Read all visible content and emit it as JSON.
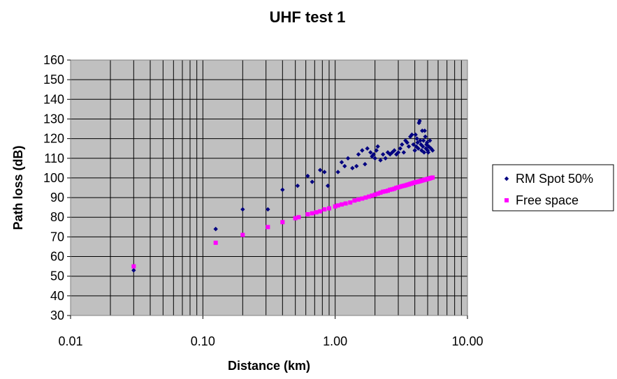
{
  "chart_data": {
    "type": "scatter",
    "title": "UHF test 1",
    "xlabel": "Distance (km)",
    "ylabel": "Path loss (dB)",
    "xscale": "log",
    "xlim": [
      0.01,
      10
    ],
    "ylim": [
      30,
      160
    ],
    "x_ticks": [
      0.01,
      0.1,
      1,
      10
    ],
    "x_tick_labels": [
      "0.01",
      "0.10",
      "1.00",
      "10.00"
    ],
    "y_ticks": [
      30,
      40,
      50,
      60,
      70,
      80,
      90,
      100,
      110,
      120,
      130,
      140,
      150,
      160
    ],
    "y_tick_labels": [
      "30",
      "40",
      "50",
      "60",
      "70",
      "80",
      "90",
      "100",
      "110",
      "120",
      "130",
      "140",
      "150",
      "160"
    ],
    "grid": true,
    "plot_background": "#C0C0C0",
    "legend_position": "right",
    "series": [
      {
        "name": "RM Spot 50%",
        "color": "#000080",
        "marker": "diamond",
        "points": [
          [
            0.03,
            53
          ],
          [
            0.125,
            74
          ],
          [
            0.2,
            84
          ],
          [
            0.31,
            84
          ],
          [
            0.4,
            94
          ],
          [
            0.52,
            96
          ],
          [
            0.62,
            101
          ],
          [
            0.67,
            98
          ],
          [
            0.77,
            104
          ],
          [
            0.83,
            103
          ],
          [
            0.88,
            96
          ],
          [
            1.05,
            103
          ],
          [
            1.12,
            108
          ],
          [
            1.18,
            106
          ],
          [
            1.25,
            110
          ],
          [
            1.35,
            105
          ],
          [
            1.45,
            106
          ],
          [
            1.5,
            112
          ],
          [
            1.6,
            114
          ],
          [
            1.68,
            107
          ],
          [
            1.75,
            115
          ],
          [
            1.85,
            113
          ],
          [
            1.9,
            111
          ],
          [
            1.95,
            112
          ],
          [
            2.0,
            110
          ],
          [
            2.05,
            114
          ],
          [
            2.1,
            116
          ],
          [
            2.2,
            109
          ],
          [
            2.3,
            112
          ],
          [
            2.4,
            110
          ],
          [
            2.5,
            113
          ],
          [
            2.6,
            112
          ],
          [
            2.7,
            113
          ],
          [
            2.8,
            114
          ],
          [
            2.9,
            112
          ],
          [
            3.0,
            113
          ],
          [
            3.1,
            115
          ],
          [
            3.2,
            117
          ],
          [
            3.3,
            113
          ],
          [
            3.4,
            119
          ],
          [
            3.5,
            118
          ],
          [
            3.6,
            116
          ],
          [
            3.7,
            121
          ],
          [
            3.8,
            122
          ],
          [
            3.9,
            117
          ],
          [
            4.0,
            114
          ],
          [
            4.05,
            122
          ],
          [
            4.1,
            116
          ],
          [
            4.15,
            120
          ],
          [
            4.2,
            118
          ],
          [
            4.25,
            115
          ],
          [
            4.3,
            128
          ],
          [
            4.35,
            129
          ],
          [
            4.4,
            119
          ],
          [
            4.45,
            117
          ],
          [
            4.5,
            114
          ],
          [
            4.55,
            124
          ],
          [
            4.6,
            116
          ],
          [
            4.65,
            119
          ],
          [
            4.7,
            113
          ],
          [
            4.75,
            124
          ],
          [
            4.8,
            121
          ],
          [
            4.85,
            115
          ],
          [
            4.9,
            117
          ],
          [
            4.95,
            118
          ],
          [
            5.0,
            114
          ],
          [
            5.05,
            113
          ],
          [
            5.1,
            116
          ],
          [
            5.2,
            119
          ],
          [
            5.3,
            115
          ],
          [
            5.45,
            114
          ]
        ]
      },
      {
        "name": "Free space",
        "color": "#FF00FF",
        "marker": "square",
        "points": [
          [
            0.03,
            55
          ],
          [
            0.125,
            67
          ],
          [
            0.2,
            71
          ],
          [
            0.31,
            75
          ],
          [
            0.4,
            77.5
          ],
          [
            0.5,
            79.5
          ],
          [
            0.53,
            80
          ],
          [
            0.62,
            81.5
          ],
          [
            0.67,
            82
          ],
          [
            0.72,
            82.5
          ],
          [
            0.77,
            83
          ],
          [
            0.83,
            84
          ],
          [
            0.9,
            84.5
          ],
          [
            1.0,
            85.5
          ],
          [
            1.05,
            86
          ],
          [
            1.12,
            86.5
          ],
          [
            1.2,
            87
          ],
          [
            1.3,
            87.5
          ],
          [
            1.4,
            88.5
          ],
          [
            1.5,
            89
          ],
          [
            1.6,
            89.5
          ],
          [
            1.7,
            90
          ],
          [
            1.8,
            90.5
          ],
          [
            1.9,
            91
          ],
          [
            2.0,
            91.5
          ],
          [
            2.1,
            92
          ],
          [
            2.2,
            92.5
          ],
          [
            2.3,
            93
          ],
          [
            2.4,
            93.2
          ],
          [
            2.5,
            93.5
          ],
          [
            2.6,
            94
          ],
          [
            2.7,
            94.2
          ],
          [
            2.8,
            94.5
          ],
          [
            2.9,
            95
          ],
          [
            3.0,
            95.2
          ],
          [
            3.1,
            95.5
          ],
          [
            3.2,
            95.8
          ],
          [
            3.3,
            96
          ],
          [
            3.4,
            96.2
          ],
          [
            3.5,
            96.5
          ],
          [
            3.6,
            96.7
          ],
          [
            3.7,
            97
          ],
          [
            3.8,
            97.2
          ],
          [
            3.9,
            97.5
          ],
          [
            4.0,
            97.7
          ],
          [
            4.1,
            97.9
          ],
          [
            4.2,
            98
          ],
          [
            4.3,
            98.2
          ],
          [
            4.4,
            98.4
          ],
          [
            4.5,
            98.6
          ],
          [
            4.6,
            98.8
          ],
          [
            4.7,
            99
          ],
          [
            4.8,
            99.1
          ],
          [
            4.9,
            99.3
          ],
          [
            5.0,
            99.5
          ],
          [
            5.1,
            99.6
          ],
          [
            5.2,
            99.8
          ],
          [
            5.3,
            100
          ],
          [
            5.45,
            100.2
          ]
        ]
      }
    ]
  }
}
